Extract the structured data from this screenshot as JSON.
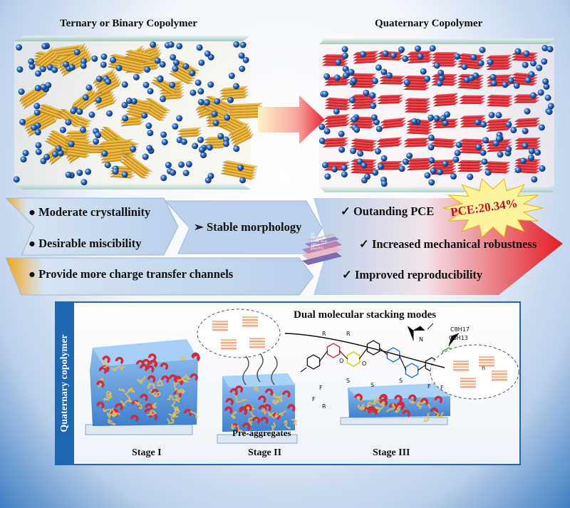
{
  "top": {
    "left_title": "Ternary or Binary Copolymer",
    "right_title": "Quaternary Copolymer",
    "pce_badge": "PCE:20.34%"
  },
  "features": {
    "left": [
      "Moderate crystallinity",
      "Desirable miscibility",
      "Provide more charge transfer channels"
    ],
    "middle": "Stable  morphology",
    "right": [
      "Outanding PCE",
      "Increased mechanical robustness",
      "Improved reproducibility"
    ],
    "device_layers": [
      "Ag",
      "PNDIT-F3N",
      "Active layer",
      "2PACz",
      "glass/ITO"
    ]
  },
  "bottom": {
    "side_label": "Quaternary copolymer",
    "heading": "Dual molecular stacking modes",
    "pre_aggregates": "Pre-aggregates",
    "stages": [
      "Stage I",
      "Stage II",
      "Stage III"
    ],
    "chem_labels": [
      "R",
      "R",
      "O",
      "O",
      "S",
      "S",
      "F",
      "N",
      "C8H17",
      "C6H13",
      "S",
      "F",
      "F",
      "R",
      "F",
      "n"
    ]
  },
  "colors": {
    "gold": "#e8a317",
    "red": "#e8262e",
    "blue": "#2f6fc4",
    "arrow": "#c9dbef"
  }
}
